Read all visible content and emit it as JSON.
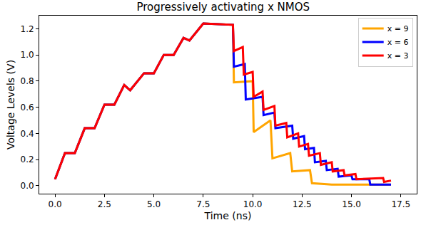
{
  "chart_data": {
    "type": "line",
    "title": "Progressively activating x NMOS",
    "x_label": "Time (ns)",
    "y_label": "Voltage Levels (V)",
    "xlim": [
      -0.8,
      18.3
    ],
    "ylim": [
      -0.06,
      1.3
    ],
    "xticks": [
      {
        "value": 0,
        "label": "0.0"
      },
      2.5,
      {
        "value": 5,
        "label": "5.0"
      },
      7.5,
      {
        "value": 10,
        "label": "10.0"
      },
      12.5,
      {
        "value": 15,
        "label": "15.0"
      },
      17.5
    ],
    "yticks": [
      {
        "value": 0,
        "label": "0.0"
      },
      0.2,
      0.4,
      0.6,
      0.8,
      {
        "value": 1,
        "label": "1.0"
      },
      1.2
    ],
    "grid": false,
    "legend": "upper right",
    "series": [
      {
        "name": "x = 9",
        "color": "#ffa500",
        "x": [
          0.0,
          0.5,
          1.0,
          1.5,
          2.0,
          2.5,
          3.0,
          3.5,
          3.8,
          4.5,
          5.0,
          5.5,
          6.0,
          6.5,
          6.8,
          7.5,
          9.0,
          9.05,
          10.0,
          10.05,
          10.9,
          11.0,
          11.9,
          12.0,
          12.9,
          13.0,
          14.0,
          17.0
        ],
        "values": [
          0.05,
          0.25,
          0.25,
          0.44,
          0.44,
          0.62,
          0.62,
          0.77,
          0.73,
          0.86,
          0.86,
          1.0,
          1.0,
          1.13,
          1.11,
          1.24,
          1.23,
          0.79,
          0.8,
          0.41,
          0.5,
          0.21,
          0.25,
          0.11,
          0.12,
          0.02,
          0.01,
          0.01
        ]
      },
      {
        "name": "x = 6",
        "color": "#0000ff",
        "x": [
          0.0,
          0.5,
          1.0,
          1.5,
          2.0,
          2.5,
          3.0,
          3.5,
          3.8,
          4.5,
          5.0,
          5.5,
          6.0,
          6.5,
          6.8,
          7.5,
          9.0,
          9.05,
          9.6,
          9.65,
          10.5,
          10.55,
          11.1,
          11.15,
          12.0,
          12.05,
          12.6,
          12.65,
          13.1,
          13.15,
          13.7,
          13.75,
          14.3,
          14.35,
          15.0,
          15.05,
          15.9,
          15.95,
          17.0
        ],
        "values": [
          0.05,
          0.25,
          0.25,
          0.44,
          0.44,
          0.62,
          0.62,
          0.77,
          0.73,
          0.86,
          0.86,
          1.0,
          1.0,
          1.13,
          1.11,
          1.24,
          1.23,
          0.91,
          0.93,
          0.66,
          0.68,
          0.54,
          0.56,
          0.44,
          0.46,
          0.36,
          0.38,
          0.28,
          0.29,
          0.18,
          0.19,
          0.12,
          0.13,
          0.07,
          0.08,
          0.05,
          0.05,
          0.01,
          0.01
        ]
      },
      {
        "name": "x = 3",
        "color": "#ff0000",
        "x": [
          0.0,
          0.5,
          1.0,
          1.5,
          2.0,
          2.5,
          3.0,
          3.5,
          3.8,
          4.5,
          5.0,
          5.5,
          6.0,
          6.5,
          6.8,
          7.5,
          9.0,
          9.05,
          9.5,
          9.55,
          10.0,
          10.05,
          10.5,
          10.55,
          11.1,
          11.15,
          11.7,
          11.75,
          12.3,
          12.35,
          12.8,
          12.85,
          13.4,
          13.45,
          14.0,
          14.05,
          14.6,
          14.65,
          15.2,
          15.25,
          16.6,
          16.65,
          17.0
        ],
        "values": [
          0.05,
          0.25,
          0.25,
          0.44,
          0.44,
          0.62,
          0.62,
          0.77,
          0.73,
          0.86,
          0.86,
          1.0,
          1.0,
          1.13,
          1.11,
          1.24,
          1.23,
          1.03,
          1.06,
          0.85,
          0.87,
          0.68,
          0.72,
          0.58,
          0.61,
          0.46,
          0.48,
          0.37,
          0.4,
          0.3,
          0.32,
          0.23,
          0.25,
          0.16,
          0.18,
          0.11,
          0.12,
          0.08,
          0.09,
          0.05,
          0.06,
          0.03,
          0.04
        ]
      }
    ]
  }
}
